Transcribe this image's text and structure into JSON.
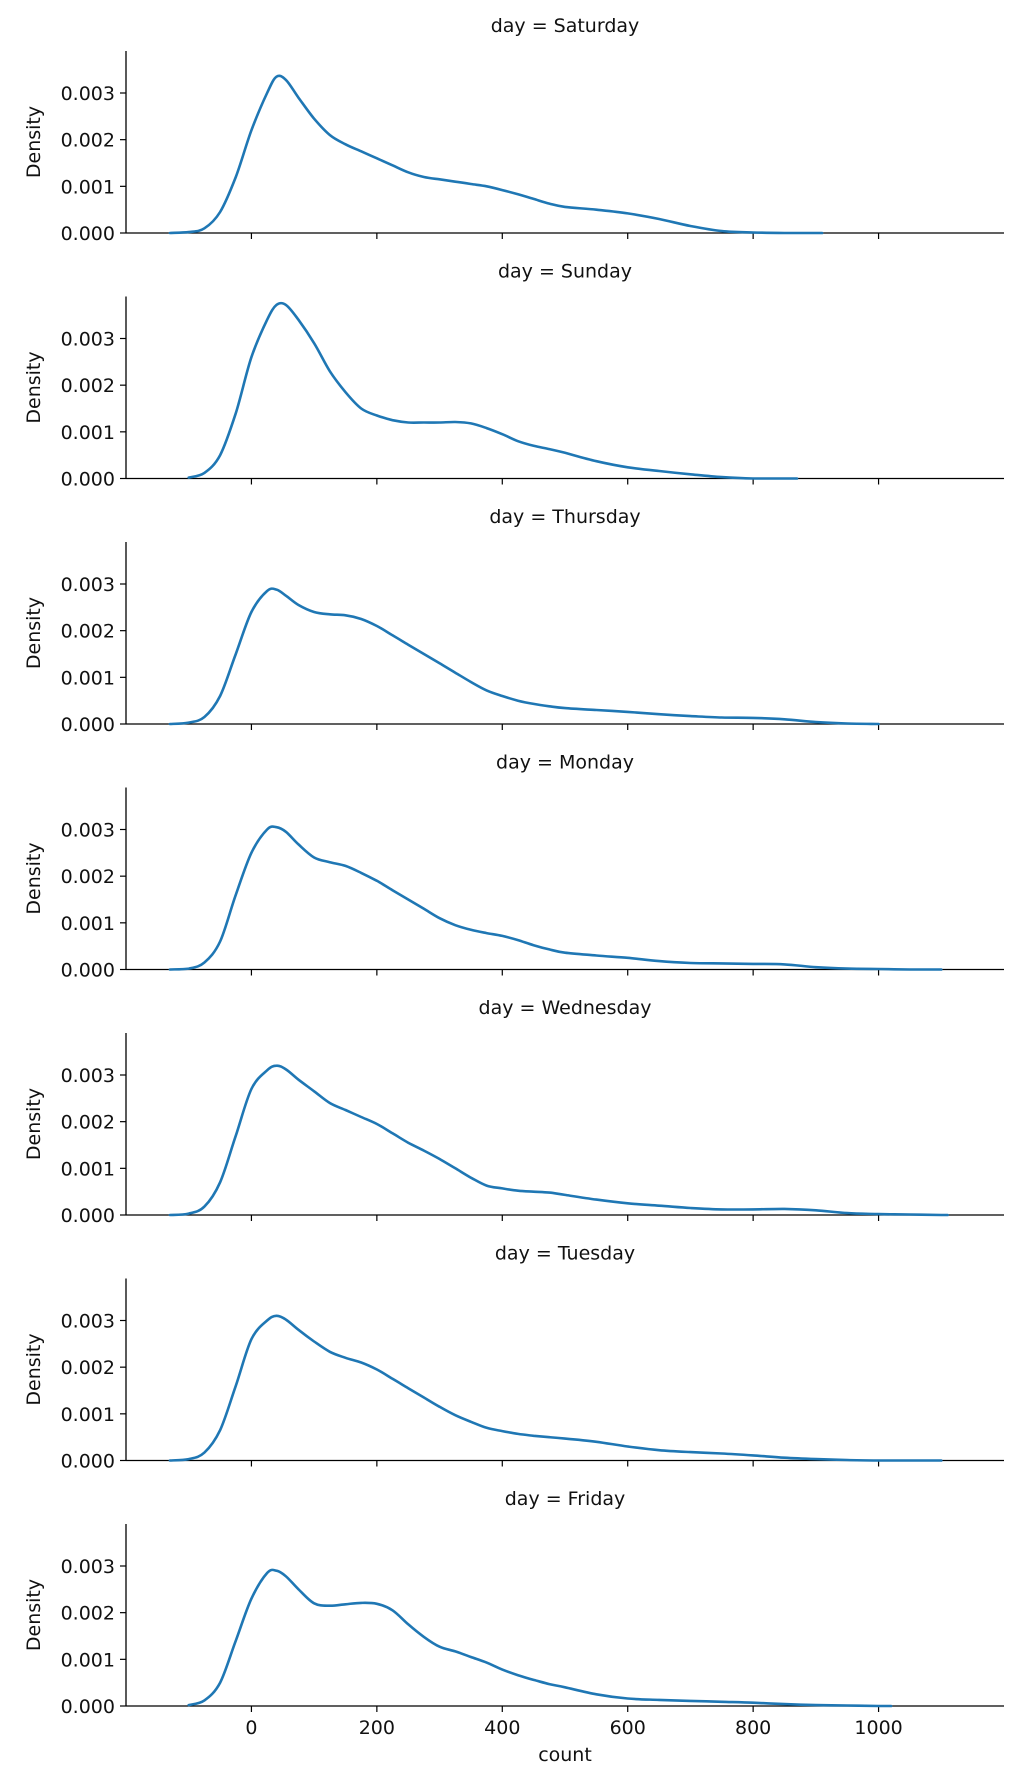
{
  "chart_data": {
    "type": "line",
    "layout": "facet-grid (7 rows, shared x axis)",
    "facet_variable": "day",
    "xlabel": "count",
    "ylabel": "Density",
    "xlim": [
      -200,
      1200
    ],
    "ylim": [
      0,
      0.0039
    ],
    "x_ticks": [
      0,
      200,
      400,
      600,
      800,
      1000
    ],
    "y_ticks": [
      0.0,
      0.001,
      0.002,
      0.003
    ],
    "y_tick_labels": [
      "0.000",
      "0.001",
      "0.002",
      "0.003"
    ],
    "line_color": "#1f77b4",
    "grid": false,
    "x": [
      -130,
      -100,
      -75,
      -50,
      -25,
      0,
      25,
      40,
      55,
      75,
      100,
      125,
      150,
      175,
      200,
      225,
      250,
      275,
      300,
      325,
      350,
      375,
      400,
      425,
      450,
      475,
      500,
      550,
      600,
      650,
      700,
      750,
      800,
      850,
      900,
      950,
      1000,
      1050,
      1100
    ],
    "panels": [
      {
        "title": "day = Saturday",
        "x_range": [
          -130,
          910
        ],
        "values": [
          0.0,
          2e-05,
          0.0001,
          0.00045,
          0.0012,
          0.0022,
          0.003,
          0.00335,
          0.00328,
          0.0029,
          0.00245,
          0.0021,
          0.0019,
          0.00175,
          0.0016,
          0.00145,
          0.0013,
          0.0012,
          0.00115,
          0.0011,
          0.00105,
          0.001,
          0.00092,
          0.00083,
          0.00073,
          0.00063,
          0.00056,
          0.0005,
          0.00042,
          0.0003,
          0.00015,
          4e-05,
          1e-05,
          0.0,
          0.0,
          null,
          null,
          null,
          null
        ]
      },
      {
        "title": "day = Sunday",
        "x_range": [
          -120,
          870
        ],
        "values": [
          0.0,
          2e-05,
          0.00012,
          0.0005,
          0.0014,
          0.0026,
          0.0034,
          0.00372,
          0.00372,
          0.0034,
          0.0029,
          0.0023,
          0.00185,
          0.0015,
          0.00135,
          0.00125,
          0.0012,
          0.0012,
          0.0012,
          0.00121,
          0.00118,
          0.00108,
          0.00095,
          0.0008,
          0.0007,
          0.00063,
          0.00055,
          0.00037,
          0.00024,
          0.00016,
          9e-05,
          3e-05,
          0.0,
          0.0,
          null,
          null,
          null,
          null,
          null
        ]
      },
      {
        "title": "day = Thursday",
        "x_range": [
          -130,
          1000
        ],
        "values": [
          0.0,
          3e-05,
          0.00015,
          0.0006,
          0.0015,
          0.0024,
          0.00285,
          0.00288,
          0.00275,
          0.00255,
          0.0024,
          0.00235,
          0.00233,
          0.00225,
          0.0021,
          0.0019,
          0.0017,
          0.0015,
          0.0013,
          0.0011,
          0.0009,
          0.00072,
          0.0006,
          0.0005,
          0.00043,
          0.00038,
          0.00034,
          0.0003,
          0.00026,
          0.00021,
          0.00017,
          0.00014,
          0.00013,
          0.0001,
          4e-05,
          1e-05,
          0.0,
          null,
          null
        ]
      },
      {
        "title": "day = Monday",
        "x_range": [
          -130,
          1100
        ],
        "values": [
          0.0,
          2e-05,
          0.00015,
          0.0006,
          0.0016,
          0.0025,
          0.003,
          0.00305,
          0.00295,
          0.00268,
          0.0024,
          0.0023,
          0.00222,
          0.00207,
          0.0019,
          0.0017,
          0.0015,
          0.0013,
          0.0011,
          0.00095,
          0.00085,
          0.00078,
          0.00072,
          0.00063,
          0.00052,
          0.00043,
          0.00036,
          0.0003,
          0.00025,
          0.00018,
          0.00014,
          0.00013,
          0.00012,
          0.00011,
          5e-05,
          2e-05,
          1e-05,
          0.0,
          0.0
        ]
      },
      {
        "title": "day = Wednesday",
        "x_range": [
          -130,
          1110
        ],
        "values": [
          0.0,
          3e-05,
          0.00018,
          0.0007,
          0.0017,
          0.0027,
          0.0031,
          0.0032,
          0.00312,
          0.0029,
          0.00265,
          0.0024,
          0.00225,
          0.0021,
          0.00195,
          0.00175,
          0.00155,
          0.00138,
          0.0012,
          0.001,
          0.0008,
          0.00063,
          0.00057,
          0.00052,
          0.0005,
          0.00048,
          0.00043,
          0.00033,
          0.00025,
          0.0002,
          0.00015,
          0.00012,
          0.00012,
          0.00013,
          0.0001,
          4e-05,
          2e-05,
          1e-05,
          0.0
        ]
      },
      {
        "title": "day = Tuesday",
        "x_range": [
          -130,
          1100
        ],
        "values": [
          0.0,
          3e-05,
          0.00017,
          0.00065,
          0.0016,
          0.0026,
          0.003,
          0.0031,
          0.00302,
          0.0028,
          0.00255,
          0.00233,
          0.0022,
          0.0021,
          0.00195,
          0.00175,
          0.00155,
          0.00135,
          0.00115,
          0.00097,
          0.00083,
          0.0007,
          0.00063,
          0.00057,
          0.00053,
          0.0005,
          0.00047,
          0.0004,
          0.0003,
          0.00022,
          0.00018,
          0.00015,
          0.00011,
          6e-05,
          3e-05,
          1e-05,
          0.0,
          0.0,
          0.0
        ]
      },
      {
        "title": "day = Friday",
        "x_range": [
          -125,
          1020
        ],
        "values": [
          0.0,
          2e-05,
          0.00012,
          0.0005,
          0.0014,
          0.0023,
          0.00285,
          0.0029,
          0.00278,
          0.0025,
          0.0022,
          0.00215,
          0.00218,
          0.00221,
          0.00219,
          0.00205,
          0.00175,
          0.00148,
          0.00127,
          0.00117,
          0.00105,
          0.00093,
          0.00078,
          0.00066,
          0.00056,
          0.00047,
          0.0004,
          0.00025,
          0.00016,
          0.00013,
          0.00011,
          9e-05,
          7e-05,
          4e-05,
          2e-05,
          1e-05,
          0.0,
          null,
          null
        ]
      }
    ]
  }
}
